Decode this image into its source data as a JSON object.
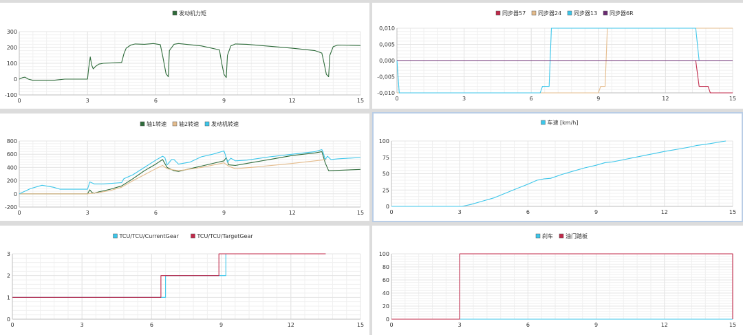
{
  "colors": {
    "dark_green": "#2e6b3a",
    "tan": "#e5bc8c",
    "cyan": "#3cc6ea",
    "crimson": "#c0294a",
    "purple": "#6a2a72",
    "grid": "#e4e4e4",
    "axis": "#bdbdbd"
  },
  "chart_data": [
    {
      "id": "engine-torque",
      "type": "line",
      "title": "",
      "legend": [
        "发动机力矩"
      ],
      "xlim": [
        0,
        15
      ],
      "ylim": [
        -100,
        300
      ],
      "xticks": [
        0,
        3,
        6,
        9,
        12,
        15
      ],
      "yticks": [
        -100,
        0,
        100,
        200,
        300
      ],
      "ytick_labels": [
        "-100",
        "0",
        "100",
        "200",
        "300"
      ],
      "series": [
        {
          "name": "发动机力矩",
          "color": "#2e6b3a",
          "points": [
            [
              0,
              0
            ],
            [
              0.15,
              10
            ],
            [
              0.25,
              12
            ],
            [
              0.4,
              0
            ],
            [
              0.6,
              -8
            ],
            [
              1.5,
              -8
            ],
            [
              1.8,
              -3
            ],
            [
              2.0,
              0
            ],
            [
              3.0,
              0
            ],
            [
              3.05,
              70
            ],
            [
              3.12,
              140
            ],
            [
              3.18,
              90
            ],
            [
              3.25,
              65
            ],
            [
              3.35,
              80
            ],
            [
              3.5,
              95
            ],
            [
              3.7,
              100
            ],
            [
              4.5,
              105
            ],
            [
              4.6,
              160
            ],
            [
              4.7,
              195
            ],
            [
              4.9,
              215
            ],
            [
              5.1,
              222
            ],
            [
              5.5,
              220
            ],
            [
              5.9,
              225
            ],
            [
              6.2,
              218
            ],
            [
              6.3,
              150
            ],
            [
              6.45,
              35
            ],
            [
              6.55,
              15
            ],
            [
              6.6,
              180
            ],
            [
              6.8,
              220
            ],
            [
              7.0,
              225
            ],
            [
              8.0,
              210
            ],
            [
              8.8,
              185
            ],
            [
              8.9,
              100
            ],
            [
              9.0,
              30
            ],
            [
              9.1,
              10
            ],
            [
              9.15,
              150
            ],
            [
              9.3,
              210
            ],
            [
              9.5,
              222
            ],
            [
              10.0,
              220
            ],
            [
              12.0,
              195
            ],
            [
              13.0,
              180
            ],
            [
              13.3,
              165
            ],
            [
              13.4,
              100
            ],
            [
              13.5,
              30
            ],
            [
              13.6,
              15
            ],
            [
              13.65,
              150
            ],
            [
              13.8,
              205
            ],
            [
              14.0,
              215
            ],
            [
              15.0,
              212
            ]
          ]
        }
      ]
    },
    {
      "id": "synchronizers",
      "type": "line",
      "title": "",
      "legend": [
        "同步器57",
        "同步器24",
        "同步器13",
        "同步器6R"
      ],
      "xlim": [
        0,
        15
      ],
      "ylim": [
        -0.01,
        0.01
      ],
      "xticks": [
        0,
        3,
        6,
        9,
        12,
        15
      ],
      "yticks": [
        -0.01,
        -0.005,
        0,
        0.005,
        0.01
      ],
      "ytick_labels": [
        "-0,010",
        "-0,005",
        "0,000",
        "0,005",
        "0,010"
      ],
      "series": [
        {
          "name": "同步器57",
          "color": "#c0294a",
          "points": [
            [
              0,
              0
            ],
            [
              13.35,
              0
            ],
            [
              13.5,
              -0.008
            ],
            [
              13.9,
              -0.008
            ],
            [
              14.0,
              -0.01
            ],
            [
              15,
              -0.01
            ]
          ]
        },
        {
          "name": "同步器24",
          "color": "#e5bc8c",
          "points": [
            [
              0,
              -0.01
            ],
            [
              9.0,
              -0.01
            ],
            [
              9.1,
              -0.008
            ],
            [
              9.3,
              -0.008
            ],
            [
              9.4,
              0.01
            ],
            [
              15,
              0.01
            ]
          ]
        },
        {
          "name": "同步器13",
          "color": "#3cc6ea",
          "points": [
            [
              0,
              0
            ],
            [
              0.1,
              -0.01
            ],
            [
              6.4,
              -0.01
            ],
            [
              6.5,
              -0.008
            ],
            [
              6.8,
              -0.008
            ],
            [
              6.9,
              0.01
            ],
            [
              13.35,
              0.01
            ],
            [
              13.5,
              0
            ],
            [
              13.6,
              0
            ],
            [
              15,
              0
            ]
          ]
        },
        {
          "name": "同步器6R",
          "color": "#6a2a72",
          "points": [
            [
              0,
              0
            ],
            [
              15,
              0
            ]
          ]
        }
      ]
    },
    {
      "id": "shaft-speeds",
      "type": "line",
      "title": "",
      "legend": [
        "轴1转速",
        "轴2转速",
        "发动机转速"
      ],
      "xlim": [
        0,
        15
      ],
      "ylim": [
        -200,
        800
      ],
      "xticks": [
        0,
        3,
        6,
        9,
        12,
        15
      ],
      "yticks": [
        -200,
        0,
        200,
        400,
        600,
        800
      ],
      "ytick_labels": [
        "-200",
        "0",
        "200",
        "400",
        "600",
        "800"
      ],
      "series": [
        {
          "name": "轴1转速",
          "color": "#2e6b3a",
          "points": [
            [
              0,
              0
            ],
            [
              3.0,
              0
            ],
            [
              3.1,
              60
            ],
            [
              3.2,
              20
            ],
            [
              3.3,
              10
            ],
            [
              3.5,
              30
            ],
            [
              4.0,
              70
            ],
            [
              4.5,
              120
            ],
            [
              5.0,
              230
            ],
            [
              5.5,
              350
            ],
            [
              6.0,
              450
            ],
            [
              6.3,
              520
            ],
            [
              6.5,
              400
            ],
            [
              6.8,
              350
            ],
            [
              7.0,
              340
            ],
            [
              7.5,
              380
            ],
            [
              8.0,
              420
            ],
            [
              8.5,
              460
            ],
            [
              9.0,
              500
            ],
            [
              9.1,
              550
            ],
            [
              9.2,
              440
            ],
            [
              9.5,
              430
            ],
            [
              10.0,
              460
            ],
            [
              11.0,
              520
            ],
            [
              12.0,
              580
            ],
            [
              13.0,
              620
            ],
            [
              13.3,
              640
            ],
            [
              13.45,
              470
            ],
            [
              13.6,
              350
            ],
            [
              15,
              370
            ]
          ]
        },
        {
          "name": "轴2转速",
          "color": "#e5bc8c",
          "points": [
            [
              0,
              0
            ],
            [
              3.0,
              0
            ],
            [
              3.5,
              20
            ],
            [
              4.0,
              50
            ],
            [
              4.5,
              100
            ],
            [
              5.0,
              200
            ],
            [
              5.5,
              290
            ],
            [
              6.0,
              380
            ],
            [
              6.3,
              430
            ],
            [
              6.5,
              380
            ],
            [
              7.0,
              350
            ],
            [
              8.0,
              400
            ],
            [
              9.0,
              470
            ],
            [
              9.2,
              420
            ],
            [
              9.5,
              380
            ],
            [
              10.5,
              410
            ],
            [
              12.0,
              460
            ],
            [
              13.0,
              500
            ],
            [
              13.5,
              520
            ]
          ]
        },
        {
          "name": "发动机转速",
          "color": "#3cc6ea",
          "points": [
            [
              0,
              0
            ],
            [
              0.5,
              80
            ],
            [
              1.0,
              130
            ],
            [
              1.5,
              100
            ],
            [
              1.8,
              70
            ],
            [
              3.0,
              70
            ],
            [
              3.1,
              180
            ],
            [
              3.3,
              150
            ],
            [
              3.7,
              150
            ],
            [
              4.5,
              170
            ],
            [
              4.6,
              230
            ],
            [
              5.0,
              290
            ],
            [
              5.5,
              400
            ],
            [
              6.0,
              510
            ],
            [
              6.3,
              570
            ],
            [
              6.4,
              550
            ],
            [
              6.5,
              440
            ],
            [
              6.7,
              520
            ],
            [
              6.8,
              520
            ],
            [
              7.0,
              450
            ],
            [
              7.5,
              480
            ],
            [
              8.0,
              560
            ],
            [
              8.5,
              600
            ],
            [
              9.0,
              650
            ],
            [
              9.05,
              600
            ],
            [
              9.15,
              480
            ],
            [
              9.3,
              540
            ],
            [
              9.5,
              500
            ],
            [
              10.0,
              510
            ],
            [
              11.0,
              560
            ],
            [
              12.0,
              600
            ],
            [
              13.0,
              640
            ],
            [
              13.3,
              670
            ],
            [
              13.35,
              640
            ],
            [
              13.45,
              520
            ],
            [
              13.55,
              570
            ],
            [
              13.7,
              520
            ],
            [
              14.0,
              530
            ],
            [
              15,
              550
            ]
          ]
        }
      ]
    },
    {
      "id": "vehicle-speed",
      "type": "line",
      "title": "",
      "legend": [
        "车速 [km/h]"
      ],
      "xlim": [
        0,
        15
      ],
      "ylim": [
        0,
        100
      ],
      "xticks": [
        0,
        3,
        6,
        9,
        12,
        15
      ],
      "yticks": [
        0,
        25,
        50,
        75,
        100
      ],
      "ytick_labels": [
        "0",
        "25",
        "50",
        "75",
        "100"
      ],
      "series": [
        {
          "name": "车速 [km/h]",
          "color": "#3cc6ea",
          "points": [
            [
              0,
              0
            ],
            [
              3.1,
              0
            ],
            [
              3.5,
              3
            ],
            [
              4.0,
              8
            ],
            [
              4.5,
              13
            ],
            [
              5.0,
              20
            ],
            [
              5.5,
              27
            ],
            [
              6.0,
              34
            ],
            [
              6.4,
              40
            ],
            [
              6.7,
              42
            ],
            [
              7.0,
              43
            ],
            [
              7.5,
              49
            ],
            [
              8.0,
              54
            ],
            [
              8.5,
              59
            ],
            [
              9.0,
              63
            ],
            [
              9.4,
              67
            ],
            [
              9.7,
              68
            ],
            [
              10.0,
              70
            ],
            [
              11.0,
              77
            ],
            [
              12.0,
              84
            ],
            [
              13.0,
              90
            ],
            [
              13.4,
              93
            ],
            [
              14.0,
              96
            ],
            [
              14.5,
              99
            ],
            [
              14.7,
              100
            ]
          ]
        }
      ]
    },
    {
      "id": "tcu-gear",
      "type": "line",
      "title": "",
      "legend": [
        "TCU/TCU/CurrentGear",
        "TCU/TCU/TargetGear"
      ],
      "xlim": [
        0,
        15
      ],
      "ylim": [
        0,
        3
      ],
      "xticks": [
        0,
        3,
        6,
        9,
        12,
        15
      ],
      "yticks": [
        0,
        1,
        2,
        3
      ],
      "ytick_labels": [
        "0",
        "1",
        "2",
        "3"
      ],
      "series": [
        {
          "name": "TCU/TCU/CurrentGear",
          "color": "#3cc6ea",
          "points": [
            [
              0,
              1
            ],
            [
              6.6,
              1
            ],
            [
              6.6,
              2
            ],
            [
              9.2,
              2
            ],
            [
              9.2,
              3
            ],
            [
              13.5,
              3
            ]
          ]
        },
        {
          "name": "TCU/TCU/TargetGear",
          "color": "#c0294a",
          "points": [
            [
              0,
              1
            ],
            [
              6.4,
              1
            ],
            [
              6.4,
              2
            ],
            [
              8.9,
              2
            ],
            [
              8.9,
              3
            ],
            [
              13.5,
              3
            ]
          ]
        }
      ]
    },
    {
      "id": "brake-throttle",
      "type": "line",
      "title": "",
      "legend": [
        "刹车",
        "油门踏板"
      ],
      "xlim": [
        0,
        15
      ],
      "ylim": [
        0,
        100
      ],
      "xticks": [
        0,
        3,
        6,
        9,
        12,
        15
      ],
      "yticks": [
        0,
        20,
        40,
        60,
        80,
        100
      ],
      "ytick_labels": [
        "0",
        "20",
        "40",
        "60",
        "80",
        "100"
      ],
      "series": [
        {
          "name": "刹车",
          "color": "#3cc6ea",
          "points": [
            [
              0,
              0
            ],
            [
              15,
              0
            ]
          ]
        },
        {
          "name": "油门踏板",
          "color": "#c0294a",
          "points": [
            [
              0,
              0
            ],
            [
              3.0,
              0
            ],
            [
              3.0,
              100
            ],
            [
              15,
              100
            ],
            [
              15,
              0
            ]
          ]
        }
      ]
    }
  ]
}
